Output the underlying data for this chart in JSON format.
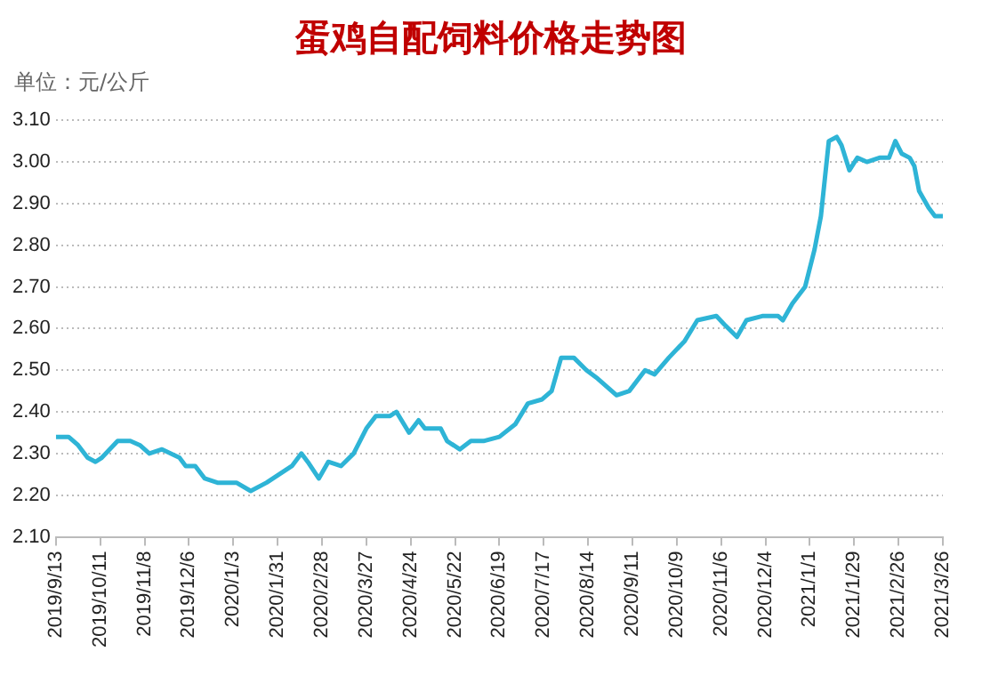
{
  "chart_data": {
    "type": "line",
    "title": "蛋鸡自配饲料价格走势图",
    "ylabel": "单位：元/公斤",
    "x": [
      "2019-09-13",
      "2019-09-21",
      "2019-09-27",
      "2019-10-03",
      "2019-10-08",
      "2019-10-12",
      "2019-10-22",
      "2019-10-30",
      "2019-11-05",
      "2019-11-11",
      "2019-11-19",
      "2019-11-30",
      "2019-12-04",
      "2019-12-10",
      "2019-12-16",
      "2019-12-24",
      "2020-01-05",
      "2020-01-14",
      "2020-01-24",
      "2020-02-09",
      "2020-02-15",
      "2020-02-19",
      "2020-02-26",
      "2020-03-03",
      "2020-03-11",
      "2020-03-19",
      "2020-03-27",
      "2020-04-02",
      "2020-04-11",
      "2020-04-15",
      "2020-04-23",
      "2020-04-29",
      "2020-05-03",
      "2020-05-13",
      "2020-05-17",
      "2020-05-25",
      "2020-06-01",
      "2020-06-09",
      "2020-06-19",
      "2020-06-29",
      "2020-07-07",
      "2020-07-16",
      "2020-07-22",
      "2020-07-28",
      "2020-08-05",
      "2020-08-13",
      "2020-08-20",
      "2020-09-01",
      "2020-09-09",
      "2020-09-19",
      "2020-09-25",
      "2020-10-04",
      "2020-10-14",
      "2020-10-22",
      "2020-11-03",
      "2020-11-08",
      "2020-11-16",
      "2020-11-22",
      "2020-12-02",
      "2020-12-12",
      "2020-12-15",
      "2020-12-21",
      "2020-12-29",
      "2021-01-04",
      "2021-01-08",
      "2021-01-13",
      "2021-01-18",
      "2021-01-21",
      "2021-01-26",
      "2021-01-31",
      "2021-02-06",
      "2021-02-14",
      "2021-02-20",
      "2021-02-24",
      "2021-02-28",
      "2021-03-05",
      "2021-03-08",
      "2021-03-11",
      "2021-03-17",
      "2021-03-21",
      "2021-03-26"
    ],
    "series": [
      {
        "color": "#2eb4d6",
        "values": [
          2.34,
          2.34,
          2.32,
          2.29,
          2.28,
          2.29,
          2.33,
          2.33,
          2.32,
          2.3,
          2.31,
          2.29,
          2.27,
          2.27,
          2.24,
          2.23,
          2.23,
          2.21,
          2.23,
          2.27,
          2.3,
          2.28,
          2.24,
          2.28,
          2.27,
          2.3,
          2.36,
          2.39,
          2.39,
          2.4,
          2.35,
          2.38,
          2.36,
          2.36,
          2.33,
          2.31,
          2.33,
          2.33,
          2.34,
          2.37,
          2.42,
          2.43,
          2.45,
          2.53,
          2.53,
          2.5,
          2.48,
          2.44,
          2.45,
          2.5,
          2.49,
          2.53,
          2.57,
          2.62,
          2.63,
          2.61,
          2.58,
          2.62,
          2.63,
          2.63,
          2.62,
          2.66,
          2.7,
          2.79,
          2.87,
          3.05,
          3.06,
          3.04,
          2.98,
          3.01,
          3.0,
          3.01,
          3.01,
          3.05,
          3.02,
          3.01,
          2.99,
          2.93,
          2.89,
          2.87,
          2.87
        ]
      }
    ],
    "xlim": [
      "2019-09-13",
      "2021-03-26"
    ],
    "xticks": [
      {
        "value": "2019-09-13",
        "label": "2019/9/13"
      },
      {
        "value": "2019-10-11",
        "label": "2019/10/11"
      },
      {
        "value": "2019-11-08",
        "label": "2019/11/8"
      },
      {
        "value": "2019-12-06",
        "label": "2019/12/6"
      },
      {
        "value": "2020-01-03",
        "label": "2020/1/3"
      },
      {
        "value": "2020-01-31",
        "label": "2020/1/31"
      },
      {
        "value": "2020-02-28",
        "label": "2020/2/28"
      },
      {
        "value": "2020-03-27",
        "label": "2020/3/27"
      },
      {
        "value": "2020-04-24",
        "label": "2020/4/24"
      },
      {
        "value": "2020-05-22",
        "label": "2020/5/22"
      },
      {
        "value": "2020-06-19",
        "label": "2020/6/19"
      },
      {
        "value": "2020-07-17",
        "label": "2020/7/17"
      },
      {
        "value": "2020-08-14",
        "label": "2020/8/14"
      },
      {
        "value": "2020-09-11",
        "label": "2020/9/11"
      },
      {
        "value": "2020-10-09",
        "label": "2020/10/9"
      },
      {
        "value": "2020-11-06",
        "label": "2020/11/6"
      },
      {
        "value": "2020-12-04",
        "label": "2020/12/4"
      },
      {
        "value": "2021-01-01",
        "label": "2021/1/1"
      },
      {
        "value": "2021-01-29",
        "label": "2021/1/29"
      },
      {
        "value": "2021-02-26",
        "label": "2021/2/26"
      },
      {
        "value": "2021-03-26",
        "label": "2021/3/26"
      }
    ],
    "ylim": [
      2.1,
      3.1
    ],
    "yticks": [
      {
        "value": 2.1,
        "label": "2.10"
      },
      {
        "value": 2.2,
        "label": "2.20"
      },
      {
        "value": 2.3,
        "label": "2.30"
      },
      {
        "value": 2.4,
        "label": "2.40"
      },
      {
        "value": 2.5,
        "label": "2.50"
      },
      {
        "value": 2.6,
        "label": "2.60"
      },
      {
        "value": 2.7,
        "label": "2.70"
      },
      {
        "value": 2.8,
        "label": "2.80"
      },
      {
        "value": 2.9,
        "label": "2.90"
      },
      {
        "value": 3.0,
        "label": "3.00"
      },
      {
        "value": 3.1,
        "label": "3.10"
      }
    ],
    "grid": "y",
    "legend": false,
    "marker": "none",
    "line_style": "solid"
  }
}
